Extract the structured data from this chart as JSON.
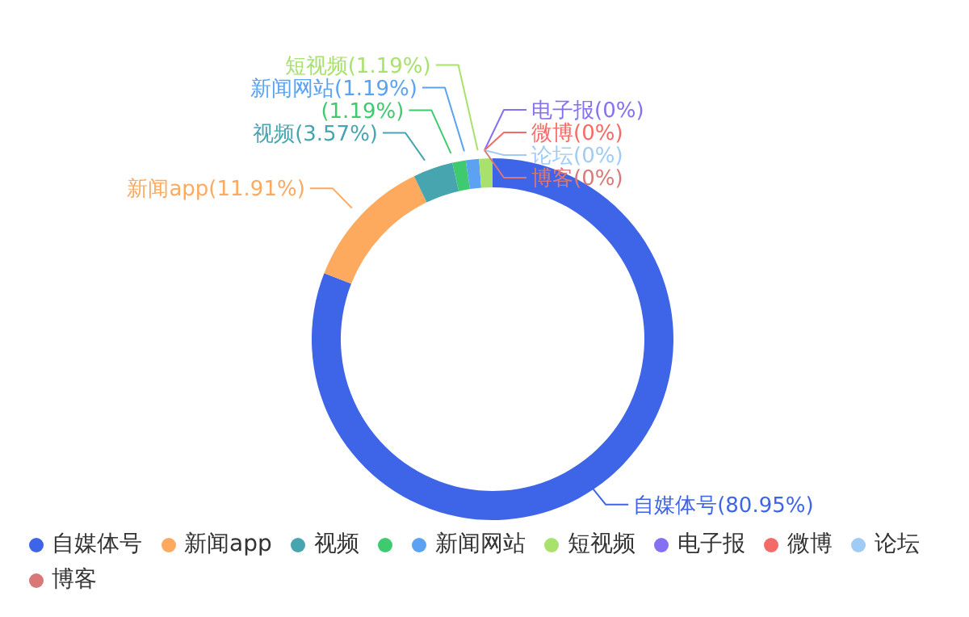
{
  "chart_data": {
    "type": "donut",
    "categories": [
      "自媒体号",
      "新闻app",
      "视频",
      null,
      "新闻网站",
      "短视频",
      "电子报",
      "微博",
      "论坛",
      "博客"
    ],
    "values": [
      80.95,
      11.91,
      3.57,
      1.19,
      1.19,
      1.19,
      0,
      0,
      0,
      0
    ],
    "colors": [
      "#3e64e8",
      "#fda95e",
      "#47a5b0",
      "#3fca70",
      "#5ba2f2",
      "#a9e16d",
      "#8470f2",
      "#f46a66",
      "#9fcbf5",
      "#d97878"
    ],
    "value_labels": [
      "(80.95%)",
      "(11.91%)",
      "(3.57%)",
      "(1.19%)",
      "(1.19%)",
      "(1.19%)",
      "(0%)",
      "(0%)",
      "(0%)",
      "(0%)"
    ],
    "legend": "bottom"
  }
}
